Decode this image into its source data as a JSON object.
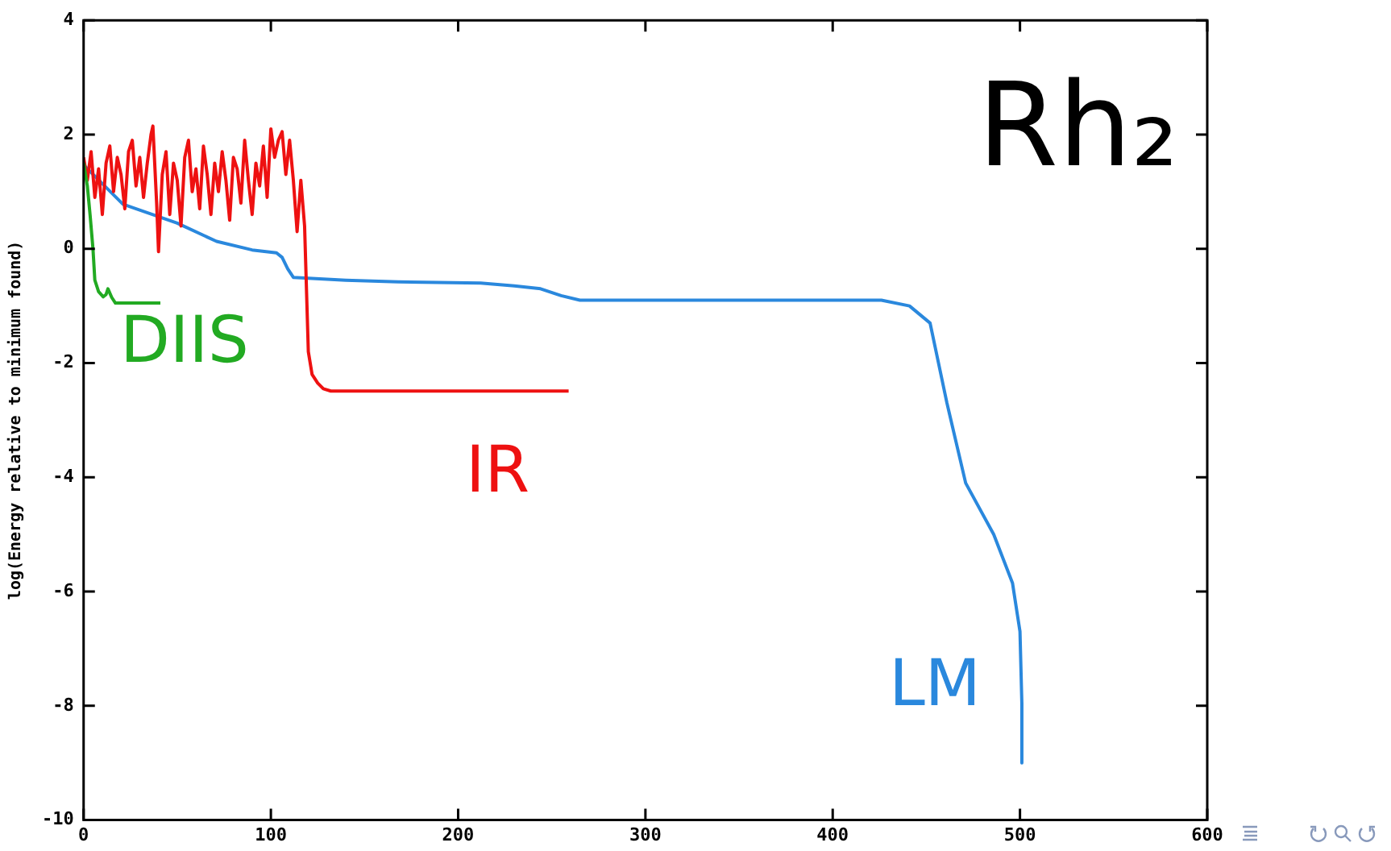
{
  "chart_data": {
    "type": "line",
    "title": "Rh₂",
    "ylabel": "log(Energy relative to minimum found)",
    "xlim": [
      0,
      600
    ],
    "xticks": [
      0,
      100,
      200,
      300,
      400,
      500,
      600
    ],
    "ylim": [
      -10,
      4
    ],
    "yticks": [
      -10,
      -8,
      -6,
      -4,
      -2,
      0,
      2,
      4
    ],
    "grid": false,
    "legend": false,
    "marker": "none",
    "line_style": "solid",
    "series": [
      {
        "name": "DIIS",
        "color": "#22aa22",
        "x": [
          0,
          2,
          3.5,
          5,
          6,
          8,
          10.5,
          12,
          13,
          15,
          17,
          25,
          41
        ],
        "values": [
          1.5,
          1.1,
          0.58,
          0,
          -0.55,
          -0.75,
          -0.84,
          -0.8,
          -0.7,
          -0.85,
          -0.95,
          -0.95,
          -0.95
        ]
      },
      {
        "name": "IR",
        "color": "#ee1111",
        "x": [
          0,
          2,
          4,
          6,
          8,
          10,
          12,
          14,
          16,
          18,
          20,
          22,
          24,
          26,
          28,
          30,
          32,
          34,
          36,
          37,
          39,
          40,
          42,
          44,
          46,
          48,
          50,
          52,
          54,
          56,
          58,
          60,
          62,
          64,
          66,
          68,
          70,
          72,
          74,
          76,
          78,
          80,
          82,
          84,
          86,
          88,
          90,
          92,
          94,
          96,
          98,
          100,
          102,
          104,
          106,
          108,
          110,
          112,
          114,
          116,
          118,
          120,
          122,
          125,
          128,
          132,
          140,
          259
        ],
        "values": [
          1.6,
          1.2,
          1.7,
          0.9,
          1.4,
          0.6,
          1.5,
          1.8,
          1.0,
          1.6,
          1.3,
          0.7,
          1.7,
          1.9,
          1.1,
          1.6,
          0.9,
          1.5,
          2.0,
          2.15,
          0.8,
          -0.05,
          1.3,
          1.7,
          0.6,
          1.5,
          1.2,
          0.4,
          1.6,
          1.9,
          1.0,
          1.4,
          0.7,
          1.8,
          1.3,
          0.6,
          1.5,
          1.0,
          1.7,
          1.2,
          0.5,
          1.6,
          1.4,
          0.8,
          1.9,
          1.2,
          0.6,
          1.5,
          1.1,
          1.8,
          0.9,
          2.1,
          1.6,
          1.9,
          2.05,
          1.3,
          1.9,
          1.2,
          0.3,
          1.2,
          0.4,
          -1.8,
          -2.2,
          -2.35,
          -2.45,
          -2.49,
          -2.49,
          -2.49
        ]
      },
      {
        "name": "LM",
        "color": "#2a88dd",
        "x": [
          0,
          21,
          50,
          71,
          90,
          103,
          106,
          109,
          112,
          140,
          168,
          212,
          230,
          244,
          255,
          265,
          300,
          426,
          441,
          452,
          461,
          471,
          486,
          496,
          500,
          501,
          501
        ],
        "values": [
          1.47,
          0.78,
          0.45,
          0.13,
          -0.02,
          -0.07,
          -0.15,
          -0.35,
          -0.5,
          -0.55,
          -0.58,
          -0.6,
          -0.65,
          -0.7,
          -0.82,
          -0.9,
          -0.9,
          -0.9,
          -1.0,
          -1.3,
          -2.7,
          -4.1,
          -5.0,
          -5.85,
          -6.7,
          -7.95,
          -9.0
        ]
      }
    ]
  }
}
